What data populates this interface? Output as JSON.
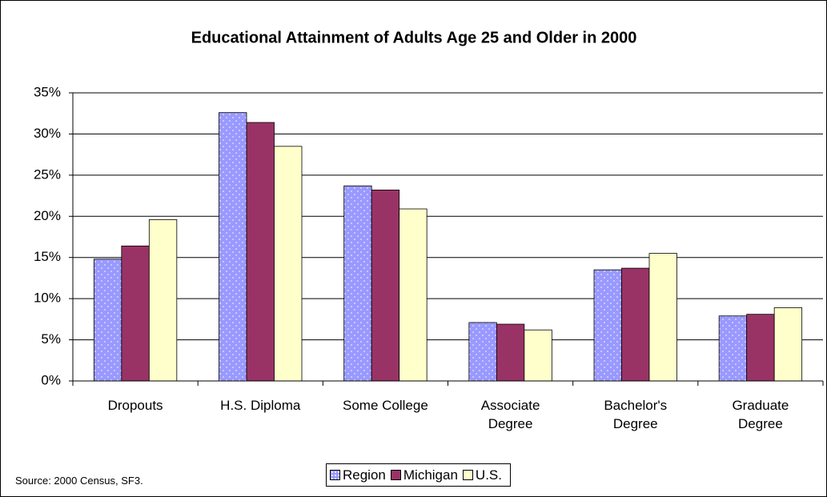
{
  "chart_data": {
    "type": "bar",
    "title": "Educational Attainment of Adults Age 25 and Older in 2000",
    "categories": [
      "Dropouts",
      "H.S. Diploma",
      "Some College",
      "Associate\nDegree",
      "Bachelor's\nDegree",
      "Graduate\nDegree"
    ],
    "series": [
      {
        "name": "Region",
        "color": "#9999ff",
        "values": [
          14.8,
          32.6,
          23.7,
          7.1,
          13.5,
          7.9
        ]
      },
      {
        "name": "Michigan",
        "color": "#993366",
        "values": [
          16.4,
          31.4,
          23.2,
          6.9,
          13.7,
          8.1
        ]
      },
      {
        "name": "U.S.",
        "color": "#ffffcc",
        "values": [
          19.6,
          28.5,
          20.9,
          6.2,
          15.5,
          8.9
        ]
      }
    ],
    "ylim": [
      0,
      35
    ],
    "yticks": [
      {
        "value": 0,
        "label": "0%"
      },
      {
        "value": 5,
        "label": "5%"
      },
      {
        "value": 10,
        "label": "10%"
      },
      {
        "value": 15,
        "label": "15%"
      },
      {
        "value": 20,
        "label": "20%"
      },
      {
        "value": 25,
        "label": "25%"
      },
      {
        "value": 30,
        "label": "30%"
      },
      {
        "value": 35,
        "label": "35%"
      }
    ],
    "grid": true,
    "legend": "bottom",
    "source": "Source: 2000 Census, SF3."
  }
}
